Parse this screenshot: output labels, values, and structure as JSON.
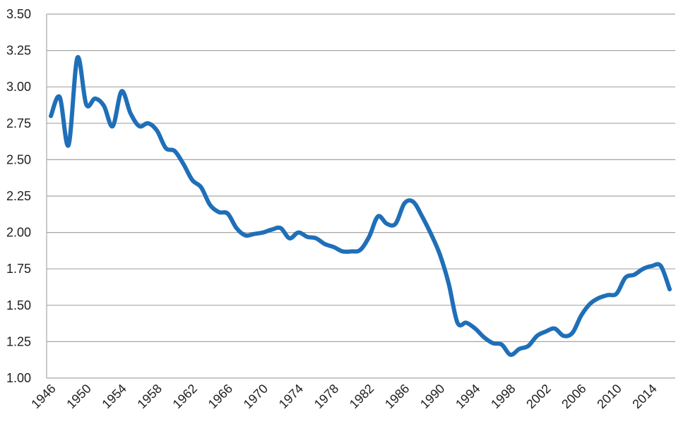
{
  "chart_data": {
    "type": "line",
    "title": "",
    "xlabel": "",
    "ylabel": "",
    "xlim": [
      1946,
      2016
    ],
    "ylim": [
      1.0,
      3.5
    ],
    "y_ticks": [
      "1.00",
      "1.25",
      "1.50",
      "1.75",
      "2.00",
      "2.25",
      "2.50",
      "2.75",
      "3.00",
      "3.25",
      "3.50"
    ],
    "x_ticks": [
      "1946",
      "1950",
      "1954",
      "1958",
      "1962",
      "1966",
      "1970",
      "1974",
      "1978",
      "1982",
      "1986",
      "1990",
      "1994",
      "1998",
      "2002",
      "2006",
      "2010",
      "2014"
    ],
    "grid": true,
    "legend": "none",
    "color": "#1f6fb8",
    "series": [
      {
        "x": [
          1946,
          1947,
          1948,
          1949,
          1950,
          1951,
          1952,
          1953,
          1954,
          1955,
          1956,
          1957,
          1958,
          1959,
          1960,
          1961,
          1962,
          1963,
          1964,
          1965,
          1966,
          1967,
          1968,
          1969,
          1970,
          1971,
          1972,
          1973,
          1974,
          1975,
          1976,
          1977,
          1978,
          1979,
          1980,
          1981,
          1982,
          1983,
          1984,
          1985,
          1986,
          1987,
          1988,
          1989,
          1990,
          1991,
          1992,
          1993,
          1994,
          1995,
          1996,
          1997,
          1998,
          1999,
          2000,
          2001,
          2002,
          2003,
          2004,
          2005,
          2006,
          2007,
          2008,
          2009,
          2010,
          2011,
          2012,
          2013,
          2014,
          2015,
          2016
        ],
        "values": [
          2.8,
          2.93,
          2.6,
          3.2,
          2.88,
          2.92,
          2.87,
          2.73,
          2.97,
          2.82,
          2.73,
          2.75,
          2.7,
          2.58,
          2.56,
          2.47,
          2.36,
          2.31,
          2.19,
          2.14,
          2.13,
          2.03,
          1.98,
          1.99,
          2.0,
          2.02,
          2.03,
          1.96,
          2.0,
          1.97,
          1.96,
          1.92,
          1.9,
          1.87,
          1.87,
          1.88,
          1.97,
          2.11,
          2.06,
          2.06,
          2.2,
          2.21,
          2.11,
          1.99,
          1.85,
          1.65,
          1.38,
          1.38,
          1.34,
          1.28,
          1.24,
          1.23,
          1.16,
          1.2,
          1.22,
          1.29,
          1.32,
          1.34,
          1.29,
          1.31,
          1.43,
          1.51,
          1.55,
          1.57,
          1.58,
          1.69,
          1.71,
          1.75,
          1.77,
          1.77,
          1.61
        ]
      }
    ]
  }
}
